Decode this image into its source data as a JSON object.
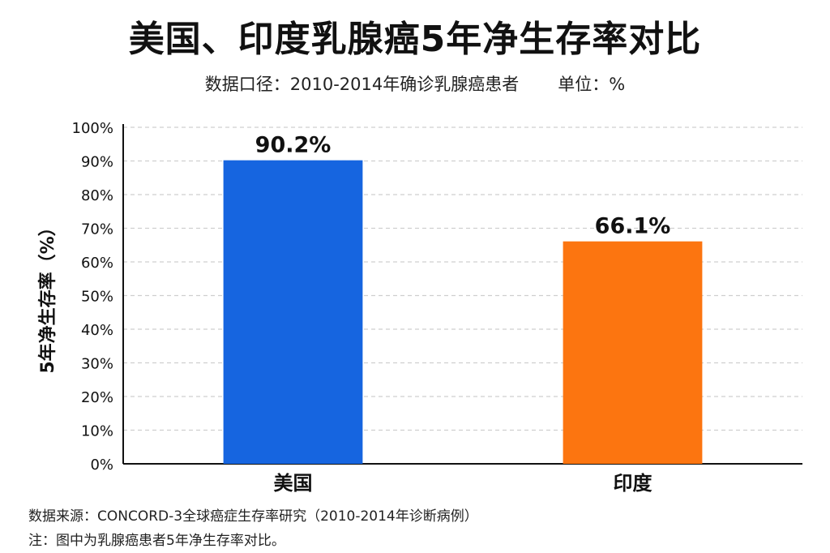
{
  "title": "美国、印度乳腺癌5年净生存率对比",
  "subtitle": {
    "scope": "数据口径：2010-2014年确诊乳腺癌患者",
    "unit": "单位：%"
  },
  "footer": {
    "source": "数据来源：CONCORD-3全球癌症生存率研究（2010-2014年诊断病例）",
    "note": "注：图中为乳腺癌患者5年净生存率对比。"
  },
  "chart_data": {
    "type": "bar",
    "categories": [
      "美国",
      "印度"
    ],
    "values": [
      90.2,
      66.1
    ],
    "value_labels": [
      "90.2%",
      "66.1%"
    ],
    "colors": [
      "#1665e0",
      "#fc7510"
    ],
    "ylabel": "5年净生存率（%）",
    "ylim": [
      0,
      100
    ],
    "yticks": [
      "0%",
      "10%",
      "20%",
      "30%",
      "40%",
      "50%",
      "60%",
      "70%",
      "80%",
      "90%",
      "100%"
    ],
    "grid": true
  }
}
